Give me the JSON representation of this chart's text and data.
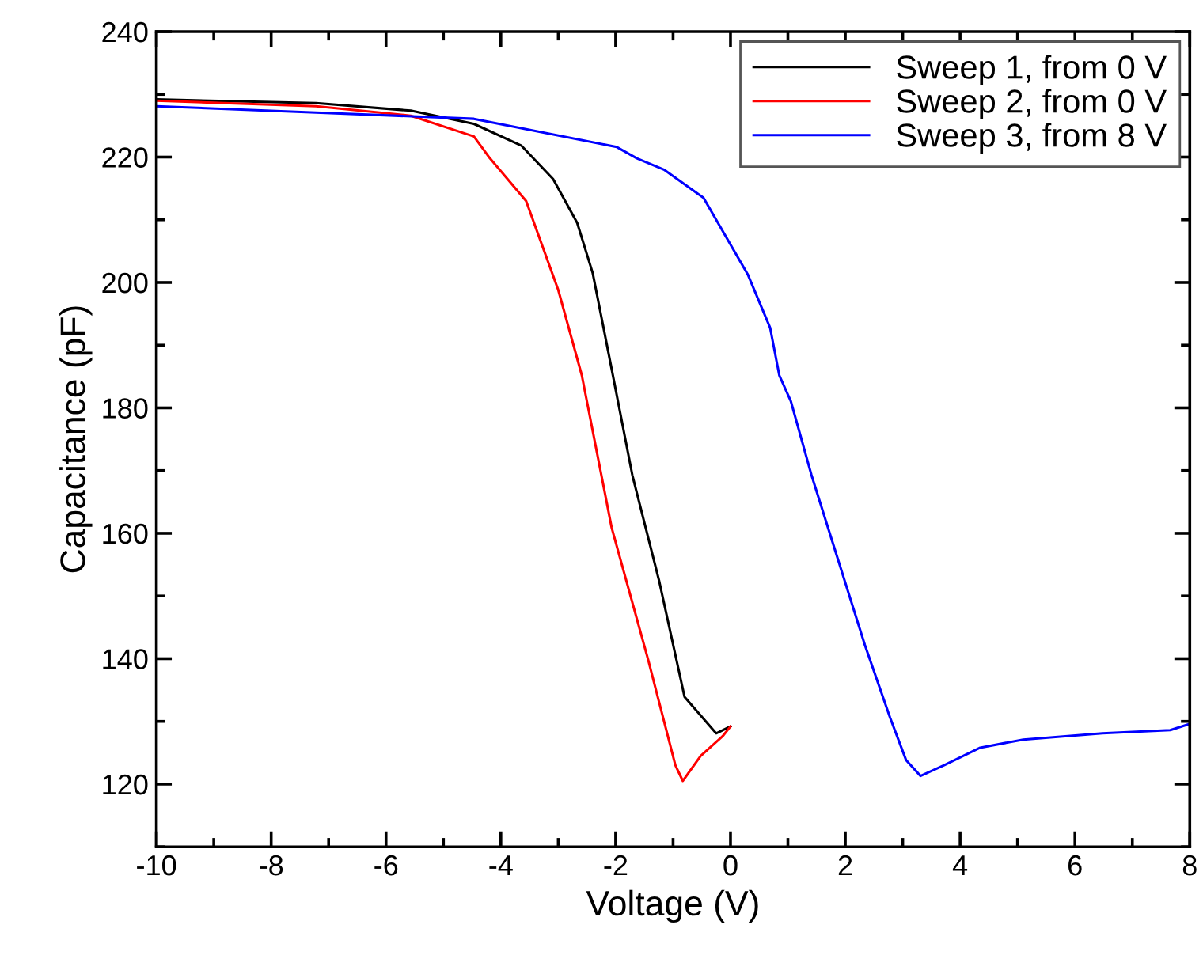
{
  "chart_data": {
    "type": "line",
    "xlabel": "Voltage (V)",
    "ylabel": "Capacitance (pF)",
    "xlim": [
      -10,
      8
    ],
    "xticks": [
      -10,
      -8,
      -6,
      -4,
      -2,
      0,
      2,
      4,
      6,
      8
    ],
    "ylim": [
      110,
      240
    ],
    "yticks": [
      120,
      140,
      160,
      180,
      200,
      220,
      240
    ],
    "grid": false,
    "legend": "top right",
    "marker": "none",
    "line_style": "solid",
    "series": [
      {
        "name": "Sweep 1, from 0 V",
        "color": "#000000",
        "x": [
          -10,
          -7.22,
          -5.57,
          -4.47,
          -3.64,
          -3.09,
          -2.67,
          -2.4,
          -2.07,
          -1.71,
          -1.24,
          -0.8,
          -0.25,
          0
        ],
        "values": [
          229.2,
          228.6,
          227.4,
          225.3,
          221.8,
          216.5,
          209.5,
          201.5,
          186.2,
          169.3,
          152.3,
          133.9,
          128.1,
          129.2
        ]
      },
      {
        "name": "Sweep 2, from 0 V",
        "color": "#ff0000",
        "x": [
          -10,
          -7.22,
          -5.57,
          -4.47,
          -4.19,
          -3.56,
          -3.0,
          -2.59,
          -2.07,
          -1.43,
          -0.96,
          -0.83,
          -0.52,
          -0.14,
          0
        ],
        "values": [
          229.0,
          228.1,
          226.6,
          223.3,
          219.8,
          213.0,
          198.8,
          185.2,
          160.9,
          139.7,
          123.0,
          120.5,
          124.5,
          127.6,
          129.2
        ]
      },
      {
        "name": "Sweep 3, from 8 V",
        "color": "#0000ff",
        "x": [
          -10,
          -7.22,
          -4.47,
          -1.98,
          -1.63,
          -1.16,
          -0.47,
          0.3,
          0.69,
          0.85,
          1.05,
          1.41,
          1.87,
          2.34,
          2.78,
          3.06,
          3.31,
          3.72,
          4.35,
          5.1,
          6.48,
          7.66,
          8
        ],
        "values": [
          228.1,
          227.1,
          226.1,
          221.6,
          219.8,
          218.0,
          213.5,
          201.3,
          192.8,
          185.2,
          181.1,
          169.3,
          155.9,
          142.2,
          130.6,
          123.8,
          121.3,
          123.0,
          125.8,
          127.1,
          128.1,
          128.6,
          129.6
        ]
      }
    ]
  }
}
